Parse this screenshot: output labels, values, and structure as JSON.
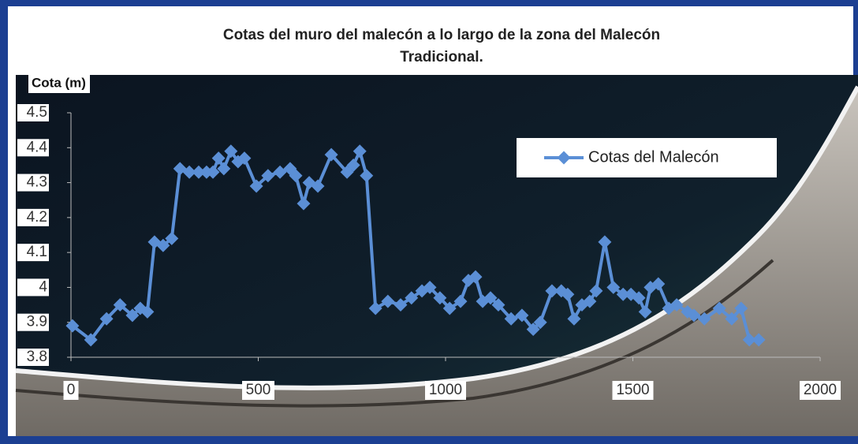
{
  "chart_data": {
    "type": "line",
    "title": "Cotas del muro del malecón a lo largo de la zona del Malecón",
    "subtitle": "Tradicional.",
    "y_label": "Cota (m)",
    "legend_position": "upper right",
    "xlim": [
      0,
      2000
    ],
    "xticks": [
      0,
      500,
      1000,
      1500,
      2000
    ],
    "ylim": [
      3.8,
      4.5
    ],
    "yticks": [
      3.8,
      3.9,
      4,
      4.1,
      4.2,
      4.3,
      4.4,
      4.5
    ],
    "x": [
      4,
      53,
      95,
      131,
      164,
      185,
      204,
      223,
      246,
      269,
      291,
      316,
      341,
      362,
      379,
      394,
      408,
      427,
      446,
      463,
      495,
      526,
      558,
      585,
      600,
      621,
      636,
      659,
      695,
      737,
      754,
      771,
      789,
      813,
      846,
      880,
      909,
      937,
      958,
      985,
      1011,
      1040,
      1061,
      1080,
      1099,
      1120,
      1141,
      1175,
      1204,
      1234,
      1253,
      1284,
      1309,
      1326,
      1343,
      1364,
      1385,
      1402,
      1425,
      1448,
      1474,
      1495,
      1516,
      1533,
      1547,
      1568,
      1596,
      1617,
      1646,
      1663,
      1691,
      1731,
      1764,
      1789,
      1811,
      1836
    ],
    "series": [
      {
        "name": "Cotas del Malecón",
        "color": "#5b8fd6",
        "values": [
          3.89,
          3.85,
          3.91,
          3.95,
          3.92,
          3.94,
          3.93,
          4.13,
          4.12,
          4.14,
          4.34,
          4.33,
          4.33,
          4.33,
          4.33,
          4.37,
          4.34,
          4.39,
          4.36,
          4.37,
          4.29,
          4.32,
          4.33,
          4.34,
          4.32,
          4.24,
          4.3,
          4.29,
          4.38,
          4.33,
          4.35,
          4.39,
          4.32,
          3.94,
          3.96,
          3.95,
          3.97,
          3.99,
          4.0,
          3.97,
          3.94,
          3.96,
          4.02,
          4.03,
          3.96,
          3.97,
          3.95,
          3.91,
          3.92,
          3.88,
          3.9,
          3.99,
          3.99,
          3.98,
          3.91,
          3.95,
          3.96,
          3.99,
          4.13,
          4.0,
          3.98,
          3.98,
          3.97,
          3.93,
          4.0,
          4.01,
          3.94,
          3.95,
          3.93,
          3.92,
          3.91,
          3.94,
          3.91,
          3.94,
          3.85,
          3.85
        ]
      }
    ]
  }
}
